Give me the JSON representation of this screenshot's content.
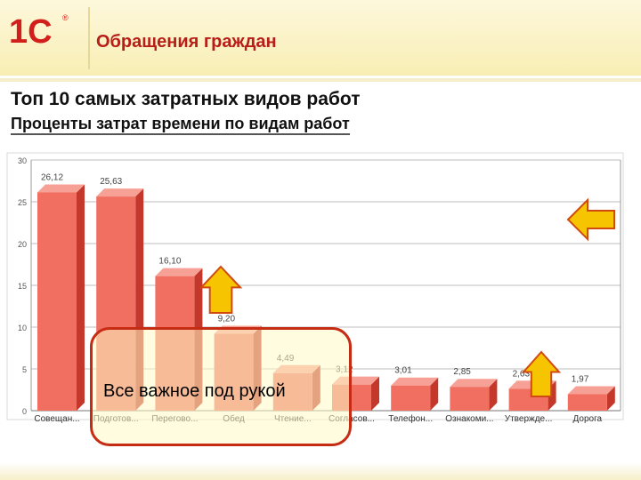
{
  "header": {
    "logo_text": "1С",
    "title": "Обращения граждан"
  },
  "report": {
    "heading": "Топ 10 самых затратных видов работ",
    "subheading": "Проценты затрат времени по видам работ"
  },
  "callout": {
    "text": "Все важное под рукой"
  },
  "arrows": [
    {
      "name": "arrow-up-icon"
    },
    {
      "name": "arrow-left-icon"
    },
    {
      "name": "arrow-up-icon"
    }
  ],
  "colors": {
    "bar_front": "#f06f61",
    "bar_side": "#c4382b",
    "bar_top": "#f7a196",
    "title_red": "#b81d18",
    "arrow_fill": "#f6c400",
    "arrow_stroke": "#d04a10"
  },
  "chart_data": {
    "type": "bar",
    "categories": [
      "Совещан...",
      "Подготов...",
      "Перегово...",
      "Обед",
      "Чтение...",
      "Согласов...",
      "Телефон...",
      "Ознакоми...",
      "Утвержде...",
      "Дорога"
    ],
    "values": [
      26.12,
      25.63,
      16.1,
      9.2,
      4.49,
      3.12,
      3.01,
      2.85,
      2.63,
      1.97
    ],
    "value_labels": [
      "26,12",
      "25,63",
      "16,10",
      "9,20",
      "4,49",
      "3,12",
      "3,01",
      "2,85",
      "2,63",
      "1,97"
    ],
    "yticks": [
      "0",
      "5",
      "10",
      "15",
      "20",
      "25",
      "30"
    ],
    "ylim": [
      0,
      30
    ],
    "grid": true,
    "legend": "none"
  }
}
